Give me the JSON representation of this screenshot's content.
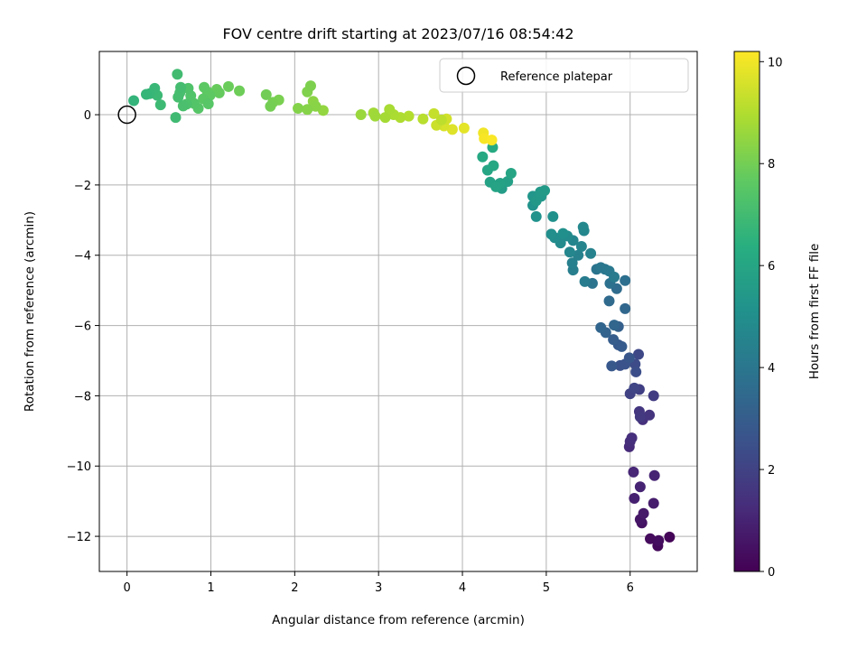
{
  "chart_data": {
    "type": "scatter",
    "title": "FOV centre drift starting at 2023/07/16 08:54:42",
    "xlabel": "Angular distance from reference (arcmin)",
    "ylabel": "Rotation from reference (arcmin)",
    "xlim": [
      -0.33,
      6.8
    ],
    "ylim": [
      -13.0,
      1.8
    ],
    "xticks": [
      0,
      1,
      2,
      3,
      4,
      5,
      6
    ],
    "yticks": [
      0,
      -2,
      -4,
      -6,
      -8,
      -10,
      -12
    ],
    "grid": true,
    "legend": {
      "placement": "top-right",
      "entries": [
        "Reference platepar"
      ]
    },
    "reference_point": {
      "x": 0,
      "y": 0,
      "label": "Reference platepar"
    },
    "colorbar": {
      "label": "Hours from first FF file",
      "colormap": "viridis",
      "range": [
        0,
        10.2
      ],
      "ticks": [
        0,
        2,
        4,
        6,
        8,
        10
      ],
      "stops": [
        "#440154",
        "#472d7b",
        "#3b528b",
        "#2c728e",
        "#21918c",
        "#28ae80",
        "#5ec962",
        "#addc30",
        "#fde725"
      ]
    },
    "points": [
      [
        6.47,
        -12.02,
        0.1
      ],
      [
        6.33,
        -12.27,
        0.2
      ],
      [
        6.24,
        -12.07,
        0.3
      ],
      [
        6.34,
        -12.12,
        0.35
      ],
      [
        6.14,
        -11.62,
        0.5
      ],
      [
        6.12,
        -11.52,
        0.6
      ],
      [
        6.16,
        -11.35,
        0.7
      ],
      [
        6.28,
        -11.06,
        0.8
      ],
      [
        6.05,
        -10.92,
        0.9
      ],
      [
        6.12,
        -10.59,
        1.0
      ],
      [
        6.29,
        -10.27,
        1.0
      ],
      [
        6.04,
        -10.17,
        1.1
      ],
      [
        5.99,
        -9.45,
        1.2
      ],
      [
        6.0,
        -9.3,
        1.3
      ],
      [
        6.02,
        -9.2,
        1.35
      ],
      [
        6.15,
        -8.68,
        1.4
      ],
      [
        6.23,
        -8.55,
        1.5
      ],
      [
        6.11,
        -8.45,
        1.6
      ],
      [
        6.12,
        -8.6,
        1.7
      ],
      [
        6.28,
        -8.0,
        1.8
      ],
      [
        6.11,
        -7.82,
        1.9
      ],
      [
        6.0,
        -7.94,
        2.0
      ],
      [
        6.05,
        -7.78,
        2.1
      ],
      [
        6.1,
        -6.82,
        2.2
      ],
      [
        6.06,
        -7.1,
        2.3
      ],
      [
        6.07,
        -7.32,
        2.4
      ],
      [
        5.88,
        -7.14,
        2.5
      ],
      [
        5.94,
        -7.1,
        2.6
      ],
      [
        5.99,
        -6.92,
        2.7
      ],
      [
        5.78,
        -7.15,
        2.8
      ],
      [
        5.86,
        -6.55,
        2.8
      ],
      [
        5.9,
        -6.6,
        2.9
      ],
      [
        5.8,
        -6.4,
        3.0
      ],
      [
        5.86,
        -6.03,
        3.1
      ],
      [
        5.71,
        -6.2,
        3.2
      ],
      [
        5.65,
        -6.06,
        3.3
      ],
      [
        5.81,
        -5.99,
        3.35
      ],
      [
        5.94,
        -5.52,
        3.4
      ],
      [
        5.75,
        -5.3,
        3.5
      ],
      [
        5.84,
        -4.95,
        3.6
      ],
      [
        5.94,
        -4.72,
        3.7
      ],
      [
        5.76,
        -4.8,
        3.8
      ],
      [
        5.55,
        -4.8,
        3.85
      ],
      [
        5.6,
        -4.4,
        3.9
      ],
      [
        5.7,
        -4.4,
        4.0
      ],
      [
        5.65,
        -4.35,
        4.05
      ],
      [
        5.75,
        -4.45,
        4.1
      ],
      [
        5.81,
        -4.62,
        4.2
      ],
      [
        5.46,
        -4.75,
        4.25
      ],
      [
        5.32,
        -4.42,
        4.3
      ],
      [
        5.31,
        -4.22,
        4.4
      ],
      [
        5.38,
        -4.0,
        4.45
      ],
      [
        5.53,
        -3.95,
        4.5
      ],
      [
        5.42,
        -3.75,
        4.55
      ],
      [
        5.32,
        -3.58,
        4.6
      ],
      [
        5.28,
        -3.91,
        4.65
      ],
      [
        5.45,
        -3.3,
        4.7
      ],
      [
        5.44,
        -3.2,
        4.75
      ],
      [
        5.17,
        -3.65,
        4.8
      ],
      [
        5.25,
        -3.45,
        4.85
      ],
      [
        5.1,
        -3.5,
        4.9
      ],
      [
        5.06,
        -3.4,
        5.0
      ],
      [
        5.2,
        -3.38,
        5.05
      ],
      [
        5.08,
        -2.9,
        5.1
      ],
      [
        4.88,
        -2.9,
        5.15
      ],
      [
        4.84,
        -2.58,
        5.2
      ],
      [
        4.84,
        -2.32,
        5.3
      ],
      [
        4.94,
        -2.32,
        5.35
      ],
      [
        4.88,
        -2.45,
        5.4
      ],
      [
        4.93,
        -2.2,
        5.45
      ],
      [
        4.98,
        -2.16,
        5.5
      ],
      [
        4.47,
        -2.1,
        5.6
      ],
      [
        4.44,
        -1.97,
        5.7
      ],
      [
        4.54,
        -1.9,
        5.75
      ],
      [
        4.45,
        -1.95,
        5.8
      ],
      [
        4.33,
        -1.92,
        5.85
      ],
      [
        4.4,
        -2.05,
        5.9
      ],
      [
        4.58,
        -1.67,
        5.95
      ],
      [
        4.3,
        -1.58,
        6.0
      ],
      [
        4.37,
        -1.45,
        6.05
      ],
      [
        4.24,
        -1.2,
        6.1
      ],
      [
        4.36,
        -0.93,
        6.2
      ],
      [
        4.25,
        -0.52,
        10.0
      ],
      [
        4.26,
        -0.68,
        10.1
      ],
      [
        4.35,
        -0.72,
        10.15
      ],
      [
        4.02,
        -0.38,
        9.8
      ],
      [
        3.88,
        -0.42,
        9.7
      ],
      [
        3.78,
        -0.32,
        9.6
      ],
      [
        3.81,
        -0.12,
        9.5
      ],
      [
        3.69,
        -0.3,
        9.4
      ],
      [
        3.66,
        0.03,
        9.3
      ],
      [
        3.75,
        -0.15,
        9.2
      ],
      [
        3.53,
        -0.12,
        9.1
      ],
      [
        3.36,
        -0.04,
        9.0
      ],
      [
        3.26,
        -0.08,
        8.95
      ],
      [
        3.18,
        0.0,
        8.9
      ],
      [
        3.13,
        0.15,
        8.85
      ],
      [
        3.08,
        -0.08,
        8.8
      ],
      [
        2.94,
        0.05,
        8.75
      ],
      [
        2.96,
        -0.04,
        8.7
      ],
      [
        2.79,
        0.0,
        8.6
      ],
      [
        2.34,
        0.12,
        8.5
      ],
      [
        2.22,
        0.38,
        8.4
      ],
      [
        2.25,
        0.24,
        8.35
      ],
      [
        2.15,
        0.15,
        8.3
      ],
      [
        2.04,
        0.18,
        8.25
      ],
      [
        2.15,
        0.65,
        8.2
      ],
      [
        2.19,
        0.82,
        8.15
      ],
      [
        1.81,
        0.42,
        8.1
      ],
      [
        1.74,
        0.35,
        8.05
      ],
      [
        1.71,
        0.24,
        8.0
      ],
      [
        1.66,
        0.57,
        7.95
      ],
      [
        1.34,
        0.68,
        7.9
      ],
      [
        1.21,
        0.8,
        7.85
      ],
      [
        1.07,
        0.72,
        7.8
      ],
      [
        1.1,
        0.62,
        7.75
      ],
      [
        0.96,
        0.65,
        7.7
      ],
      [
        0.99,
        0.55,
        7.65
      ],
      [
        0.92,
        0.78,
        7.6
      ],
      [
        0.91,
        0.45,
        7.55
      ],
      [
        0.97,
        0.31,
        7.5
      ],
      [
        0.85,
        0.18,
        7.45
      ],
      [
        0.8,
        0.32,
        7.4
      ],
      [
        0.76,
        0.54,
        7.35
      ],
      [
        0.73,
        0.75,
        7.3
      ],
      [
        0.71,
        0.3,
        7.25
      ],
      [
        0.67,
        0.25,
        7.2
      ],
      [
        0.63,
        0.62,
        7.15
      ],
      [
        0.61,
        0.5,
        7.1
      ],
      [
        0.64,
        0.78,
        7.05
      ],
      [
        0.6,
        1.15,
        7.0
      ],
      [
        0.58,
        -0.08,
        6.95
      ],
      [
        0.4,
        0.28,
        6.9
      ],
      [
        0.36,
        0.55,
        6.85
      ],
      [
        0.33,
        0.75,
        6.8
      ],
      [
        0.27,
        0.6,
        6.75
      ],
      [
        0.23,
        0.58,
        6.7
      ],
      [
        0.08,
        0.4,
        6.65
      ]
    ]
  }
}
